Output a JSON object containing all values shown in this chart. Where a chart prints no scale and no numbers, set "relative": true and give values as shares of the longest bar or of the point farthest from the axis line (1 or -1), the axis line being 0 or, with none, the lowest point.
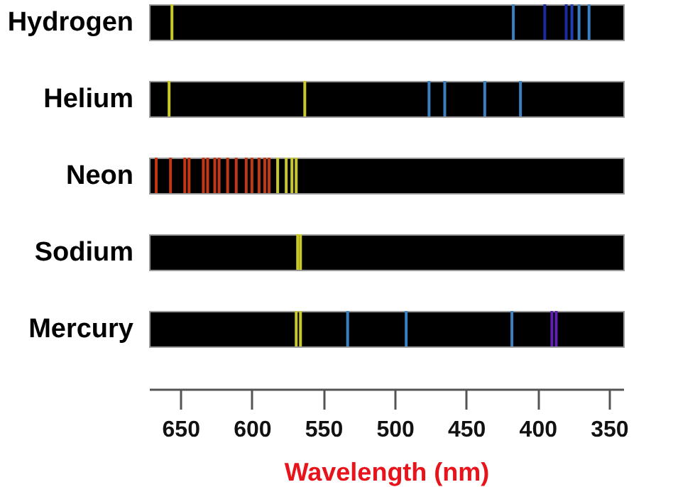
{
  "chart_data": [
    {
      "type": "bar",
      "title": "Hydrogen",
      "relative": true,
      "xlim": [
        672,
        340
      ],
      "tick_labels": false,
      "x": [
        656,
        417,
        395,
        380,
        376,
        371,
        364
      ],
      "values": [
        1,
        1,
        1,
        1,
        1,
        1,
        1
      ],
      "colors": [
        "#c8c828",
        "#3a7fc0",
        "#1c2aa0",
        "#1c2aa0",
        "#2040b0",
        "#3a7fc0",
        "#3a7fc0"
      ]
    },
    {
      "type": "bar",
      "title": "Helium",
      "relative": true,
      "xlim": [
        672,
        340
      ],
      "tick_labels": false,
      "x": [
        658,
        563,
        476,
        465,
        437,
        412
      ],
      "values": [
        1,
        1,
        1,
        1,
        1,
        1
      ],
      "colors": [
        "#c8c828",
        "#c8c828",
        "#3a7fc0",
        "#3a7fc0",
        "#3a7fc0",
        "#3a7fc0"
      ]
    },
    {
      "type": "bar",
      "title": "Neon",
      "relative": true,
      "xlim": [
        672,
        340
      ],
      "tick_labels": false,
      "x": [
        667,
        657,
        647,
        644,
        634,
        631,
        626,
        623,
        617,
        611,
        604,
        600,
        595,
        591,
        588,
        582,
        576,
        572,
        569
      ],
      "values": [
        1,
        1,
        1,
        1,
        1,
        1,
        1,
        1,
        1,
        1,
        1,
        1,
        1,
        1,
        1,
        1,
        1,
        1,
        1
      ],
      "colors": [
        "#c03818",
        "#c03818",
        "#c03818",
        "#c03818",
        "#c03818",
        "#c03818",
        "#c03818",
        "#c03818",
        "#c03818",
        "#c03818",
        "#c03818",
        "#c03818",
        "#c03818",
        "#c03818",
        "#c03818",
        "#c8c828",
        "#c8c828",
        "#c8c828",
        "#c8c828"
      ]
    },
    {
      "type": "bar",
      "title": "Sodium",
      "relative": true,
      "xlim": [
        672,
        340
      ],
      "tick_labels": false,
      "x": [
        568,
        566
      ],
      "values": [
        1,
        1
      ],
      "colors": [
        "#c8c828",
        "#c8c828"
      ]
    },
    {
      "type": "bar",
      "title": "Mercury",
      "relative": true,
      "xlim": [
        672,
        340
      ],
      "tick_labels": "x",
      "xlabel": "Wavelength (nm)",
      "xticks": [
        650,
        600,
        550,
        500,
        450,
        400,
        350
      ],
      "x": [
        569,
        566,
        533,
        492,
        418,
        390,
        387
      ],
      "values": [
        1,
        1,
        1,
        1,
        1,
        1,
        1
      ],
      "colors": [
        "#c8c828",
        "#c8c828",
        "#3a7fc0",
        "#3a7fc0",
        "#3a7fc0",
        "#6020b0",
        "#6020b0"
      ]
    }
  ]
}
